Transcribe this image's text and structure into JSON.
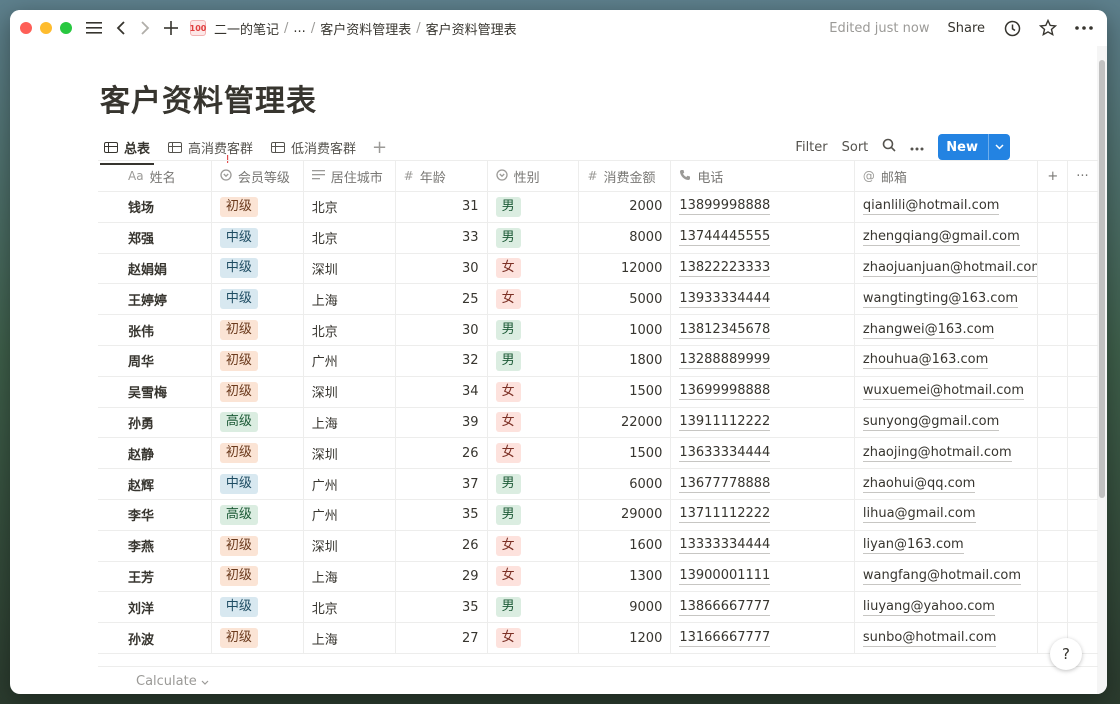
{
  "topbar": {
    "breadcrumb": [
      "二一的笔记",
      "...",
      "客户资料管理表",
      "客户资料管理表"
    ],
    "edited": "Edited just now",
    "share": "Share"
  },
  "page": {
    "title": "客户资料管理表"
  },
  "views": {
    "tabs": [
      "总表",
      "高消费客群",
      "低消费客群"
    ],
    "active_tab": "总表",
    "filter": "Filter",
    "sort": "Sort",
    "new": "New"
  },
  "table": {
    "columns": {
      "name": {
        "prefix": "Aa",
        "label": "姓名"
      },
      "level": "会员等级",
      "city": "居住城市",
      "age": "年龄",
      "gender": "性别",
      "amount": "消费金额",
      "phone": "电话",
      "email": "邮箱"
    },
    "rows": [
      {
        "name": "钱场",
        "level": "初级",
        "city": "北京",
        "age": "31",
        "gender": "男",
        "amount": "2000",
        "phone": "13899998888",
        "email": "qianlili@hotmail.com"
      },
      {
        "name": "郑强",
        "level": "中级",
        "city": "北京",
        "age": "33",
        "gender": "男",
        "amount": "8000",
        "phone": "13744445555",
        "email": "zhengqiang@gmail.com"
      },
      {
        "name": "赵娟娟",
        "level": "中级",
        "city": "深圳",
        "age": "30",
        "gender": "女",
        "amount": "12000",
        "phone": "13822223333",
        "email": "zhaojuanjuan@hotmail.com"
      },
      {
        "name": "王婷婷",
        "level": "中级",
        "city": "上海",
        "age": "25",
        "gender": "女",
        "amount": "5000",
        "phone": "13933334444",
        "email": "wangtingting@163.com"
      },
      {
        "name": "张伟",
        "level": "初级",
        "city": "北京",
        "age": "30",
        "gender": "男",
        "amount": "1000",
        "phone": "13812345678",
        "email": "zhangwei@163.com"
      },
      {
        "name": "周华",
        "level": "初级",
        "city": "广州",
        "age": "32",
        "gender": "男",
        "amount": "1800",
        "phone": "13288889999",
        "email": "zhouhua@163.com"
      },
      {
        "name": "吴雪梅",
        "level": "初级",
        "city": "深圳",
        "age": "34",
        "gender": "女",
        "amount": "1500",
        "phone": "13699998888",
        "email": "wuxuemei@hotmail.com"
      },
      {
        "name": "孙勇",
        "level": "高级",
        "city": "上海",
        "age": "39",
        "gender": "女",
        "amount": "22000",
        "phone": "13911112222",
        "email": "sunyong@gmail.com"
      },
      {
        "name": "赵静",
        "level": "初级",
        "city": "深圳",
        "age": "26",
        "gender": "女",
        "amount": "1500",
        "phone": "13633334444",
        "email": "zhaojing@hotmail.com"
      },
      {
        "name": "赵辉",
        "level": "中级",
        "city": "广州",
        "age": "37",
        "gender": "男",
        "amount": "6000",
        "phone": "13677778888",
        "email": "zhaohui@qq.com"
      },
      {
        "name": "李华",
        "level": "高级",
        "city": "广州",
        "age": "35",
        "gender": "男",
        "amount": "29000",
        "phone": "13711112222",
        "email": "lihua@gmail.com"
      },
      {
        "name": "李燕",
        "level": "初级",
        "city": "深圳",
        "age": "26",
        "gender": "女",
        "amount": "1600",
        "phone": "13333334444",
        "email": "liyan@163.com"
      },
      {
        "name": "王芳",
        "level": "初级",
        "city": "上海",
        "age": "29",
        "gender": "女",
        "amount": "1300",
        "phone": "13900001111",
        "email": "wangfang@hotmail.com"
      },
      {
        "name": "刘洋",
        "level": "中级",
        "city": "北京",
        "age": "35",
        "gender": "男",
        "amount": "9000",
        "phone": "13866667777",
        "email": "liuyang@yahoo.com"
      },
      {
        "name": "孙波",
        "level": "初级",
        "city": "上海",
        "age": "27",
        "gender": "女",
        "amount": "1200",
        "phone": "13166667777",
        "email": "sunbo@hotmail.com"
      }
    ],
    "calculate": "Calculate"
  },
  "help": "?",
  "colors": {
    "accent": "#2383e2",
    "tag_beginner": "#fbe4d5",
    "tag_mid": "#d8e8f0",
    "tag_high": "#dbede1",
    "tag_male": "#dbede1",
    "tag_female": "#fde2dd"
  }
}
